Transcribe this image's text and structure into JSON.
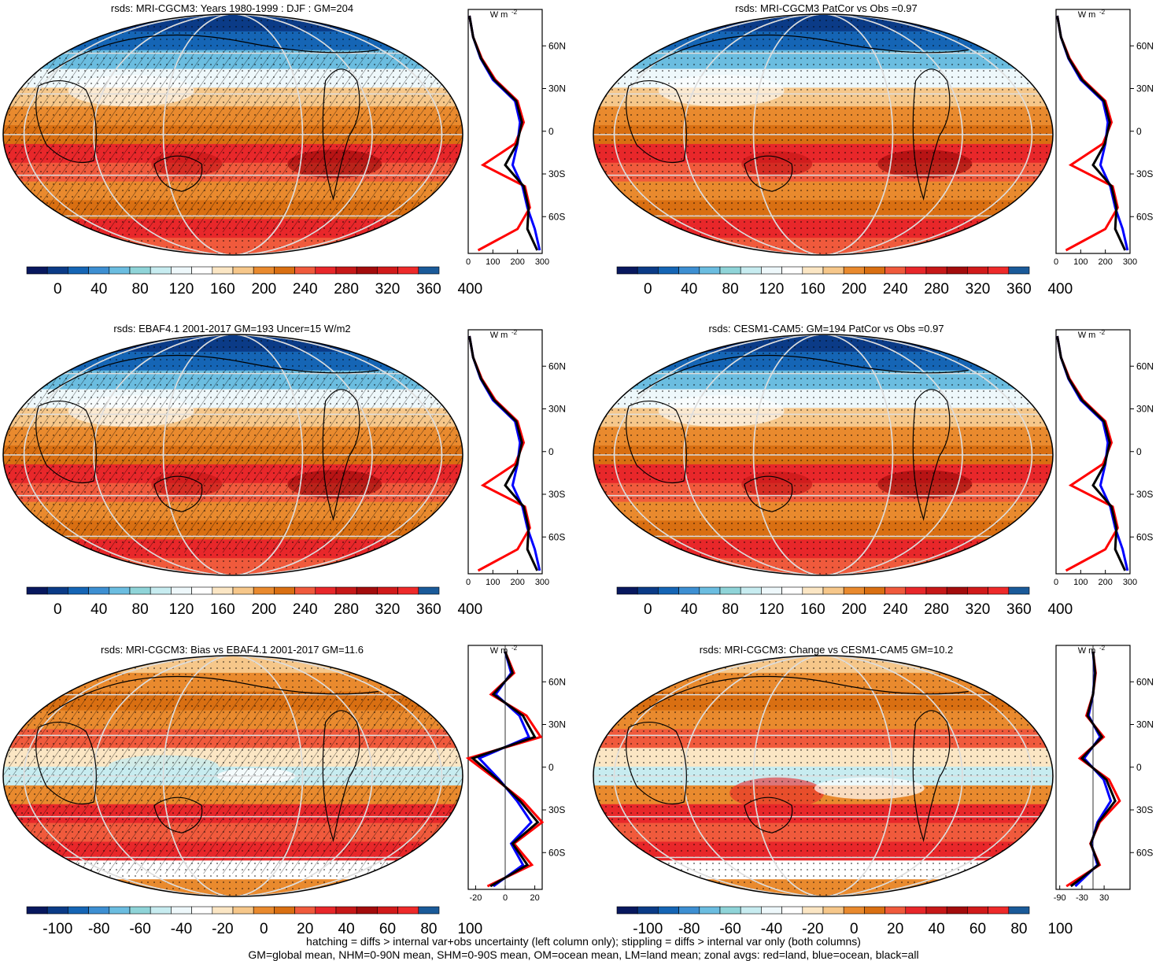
{
  "palette": [
    "#08185e",
    "#0b3b87",
    "#1565b5",
    "#3d8fd2",
    "#6bbde0",
    "#8fd4d8",
    "#c7ecf0",
    "#eef8fb",
    "#ffffff",
    "#fbe6c4",
    "#f6c78a",
    "#e98a2e",
    "#d96f12",
    "#f05a3c",
    "#e8272a",
    "#c71818",
    "#a30c0c",
    "#d11a1a",
    "#ee2a2a",
    "#1a5a99"
  ],
  "colors": {
    "zonal_land": "#ff0000",
    "zonal_ocean": "#0000ff",
    "zonal_all": "#000000"
  },
  "zonal_header": "W m",
  "zonal_header_sup": "-2",
  "lat_labels": [
    "60N",
    "30N",
    "0",
    "30S",
    "60S"
  ],
  "panels": [
    {
      "title": "rsds: MRI-CGCM3: Years 1980-1999 : DJF : GM=204",
      "colorbar_labels": [
        "0",
        "40",
        "80",
        "120",
        "160",
        "200",
        "240",
        "280",
        "320",
        "360",
        "400"
      ],
      "zonal_ticks": [
        "0",
        "100",
        "200",
        "300"
      ],
      "zonal_range": [
        0,
        300
      ],
      "zonal_zero_line": false
    },
    {
      "title": "rsds: MRI-CGCM3 PatCor vs Obs =0.97",
      "colorbar_labels": [
        "0",
        "40",
        "80",
        "120",
        "160",
        "200",
        "240",
        "280",
        "320",
        "360",
        "400"
      ],
      "zonal_ticks": [
        "0",
        "100",
        "200",
        "300"
      ],
      "zonal_range": [
        0,
        300
      ],
      "zonal_zero_line": false
    },
    {
      "title": "rsds: EBAF4.1 2001-2017 GM=193 Uncer=15 W/m2",
      "colorbar_labels": [
        "0",
        "40",
        "80",
        "120",
        "160",
        "200",
        "240",
        "280",
        "320",
        "360",
        "400"
      ],
      "zonal_ticks": [
        "0",
        "100",
        "200",
        "300"
      ],
      "zonal_range": [
        0,
        300
      ],
      "zonal_zero_line": false
    },
    {
      "title": "rsds: CESM1-CAM5: GM=194 PatCor vs Obs =0.97",
      "colorbar_labels": [
        "0",
        "40",
        "80",
        "120",
        "160",
        "200",
        "240",
        "280",
        "320",
        "360",
        "400"
      ],
      "zonal_ticks": [
        "0",
        "100",
        "200",
        "300"
      ],
      "zonal_range": [
        0,
        300
      ],
      "zonal_zero_line": false
    },
    {
      "title": "rsds: MRI-CGCM3: Bias vs EBAF4.1 2001-2017 GM=11.6",
      "colorbar_labels": [
        "-100",
        "-80",
        "-60",
        "-40",
        "-20",
        "0",
        "20",
        "40",
        "60",
        "80",
        "100"
      ],
      "zonal_ticks": [
        "-20",
        "0",
        "20"
      ],
      "zonal_range": [
        -25,
        25
      ],
      "zonal_zero_line": true
    },
    {
      "title": "rsds: MRI-CGCM3: Change vs CESM1-CAM5 GM=10.2",
      "colorbar_labels": [
        "-100",
        "-80",
        "-60",
        "-40",
        "-20",
        "0",
        "20",
        "40",
        "60",
        "80",
        "100"
      ],
      "zonal_ticks": [
        "-90",
        "-30",
        "30"
      ],
      "zonal_range": [
        -100,
        100
      ],
      "zonal_zero_line": true
    }
  ],
  "footnote_line1": "hatching = diffs > internal var+obs uncertainty (left column only); stippling = diffs > internal var only (both columns)",
  "footnote_line2": "GM=global mean, NHM=0-90N mean, SHM=0-90S mean, OM=ocean mean, LM=land mean; zonal avgs: red=land, blue=ocean, black=all"
}
